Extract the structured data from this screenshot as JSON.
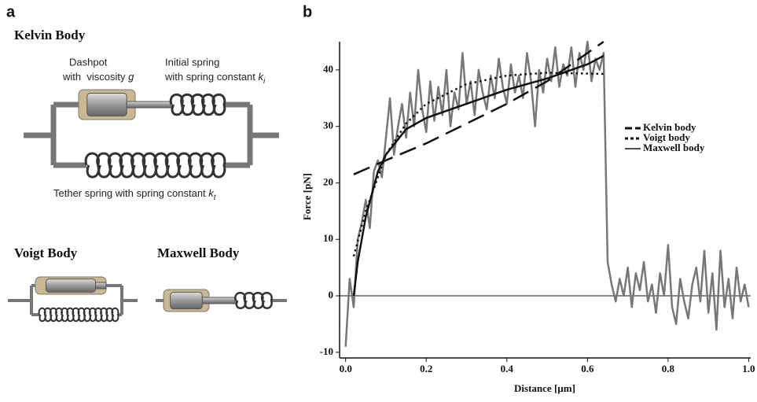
{
  "diagram": {
    "panel_a": "a",
    "kelvin": {
      "title": "Kelvin Body",
      "dashpot_1": "Dashpot",
      "dashpot_2": "with  viscosity ",
      "dashpot_symbol": "g",
      "spring_1": "Initial spring",
      "spring_2": "with spring constant ",
      "spring_symbol": "k",
      "spring_sub": "i",
      "tether": "Tether spring with spring constant ",
      "tether_symbol": "k",
      "tether_sub": "t"
    },
    "voigt": {
      "title": "Voigt Body"
    },
    "maxwell": {
      "title": "Maxwell Body"
    }
  },
  "chart_data": {
    "type": "line",
    "panel": "b",
    "xlabel": "Distance [µm]",
    "ylabel": "Force [pN]",
    "xlim": [
      -0.015,
      1.005
    ],
    "ylim": [
      -11,
      45
    ],
    "xticks": [
      {
        "value": 0,
        "label": "0.0"
      },
      0.2,
      0.4,
      0.6,
      0.8,
      {
        "value": 1,
        "label": "1.0"
      }
    ],
    "yticks": [
      -10,
      0,
      10,
      20,
      30,
      40
    ],
    "zero_line": true,
    "series": [
      {
        "color": "#777777",
        "line_style": "solid",
        "width": 2.5,
        "x": [
          0,
          0.01,
          0.02,
          0.03,
          0.04,
          0.05,
          0.06,
          0.07,
          0.08,
          0.09,
          0.1,
          0.11,
          0.12,
          0.13,
          0.14,
          0.15,
          0.16,
          0.17,
          0.18,
          0.19,
          0.2,
          0.21,
          0.22,
          0.23,
          0.24,
          0.25,
          0.26,
          0.27,
          0.28,
          0.29,
          0.3,
          0.31,
          0.32,
          0.33,
          0.34,
          0.35,
          0.36,
          0.37,
          0.38,
          0.39,
          0.4,
          0.41,
          0.42,
          0.43,
          0.44,
          0.45,
          0.46,
          0.47,
          0.48,
          0.49,
          0.5,
          0.51,
          0.52,
          0.53,
          0.54,
          0.55,
          0.56,
          0.57,
          0.58,
          0.59,
          0.6,
          0.61,
          0.62,
          0.63,
          0.64,
          0.65,
          0.66,
          0.67,
          0.68,
          0.69,
          0.7,
          0.71,
          0.72,
          0.73,
          0.74,
          0.75,
          0.76,
          0.77,
          0.78,
          0.79,
          0.8,
          0.81,
          0.82,
          0.83,
          0.84,
          0.85,
          0.86,
          0.87,
          0.88,
          0.89,
          0.9,
          0.91,
          0.92,
          0.93,
          0.94,
          0.95,
          0.96,
          0.97,
          0.98,
          0.99,
          1
        ],
        "values": [
          -9,
          3,
          -2,
          10,
          13,
          17,
          12,
          22,
          24,
          21,
          28,
          35,
          25,
          30,
          34,
          28,
          36,
          30,
          40,
          33,
          29,
          38,
          31,
          37,
          32,
          40,
          30,
          36,
          33,
          43,
          34,
          38,
          32,
          40,
          36,
          33,
          39,
          35,
          42,
          37,
          34,
          41,
          36,
          39,
          35,
          43,
          38,
          30,
          40,
          36,
          42,
          38,
          44,
          37,
          41,
          39,
          44,
          37,
          43,
          40,
          45,
          38,
          42,
          40,
          43,
          6,
          2,
          -1,
          3,
          0,
          5,
          -2,
          4,
          1,
          6,
          -1,
          2,
          -3,
          4,
          0,
          9,
          -2,
          -5,
          3,
          -1,
          -4,
          2,
          5,
          -1,
          8,
          -3,
          4,
          -6,
          8,
          -2,
          3,
          -4,
          5,
          -1,
          2,
          -2
        ]
      },
      {
        "name": "Kelvin body",
        "color": "#111111",
        "line_style": "long-dash",
        "width": 2.5,
        "x": [
          0.02,
          0.1,
          0.2,
          0.3,
          0.4,
          0.5,
          0.6,
          0.64
        ],
        "values": [
          21.5,
          24,
          27,
          30.5,
          34,
          38,
          43,
          45
        ]
      },
      {
        "name": "Voigt body",
        "color": "#111111",
        "line_style": "dotted",
        "width": 2.5,
        "x": [
          0.02,
          0.05,
          0.1,
          0.15,
          0.2,
          0.3,
          0.4,
          0.5,
          0.64
        ],
        "values": [
          7,
          15,
          25,
          30.5,
          34,
          37.5,
          39,
          39.5,
          39.3
        ]
      },
      {
        "name": "Maxwell body",
        "color": "#111111",
        "line_style": "solid",
        "width": 2.5,
        "x": [
          0.02,
          0.03,
          0.05,
          0.08,
          0.1,
          0.15,
          0.2,
          0.3,
          0.4,
          0.5,
          0.6,
          0.64
        ],
        "values": [
          0,
          6,
          14,
          22,
          25,
          29.5,
          31.5,
          34,
          36.5,
          38.5,
          41,
          42.5
        ]
      }
    ]
  }
}
